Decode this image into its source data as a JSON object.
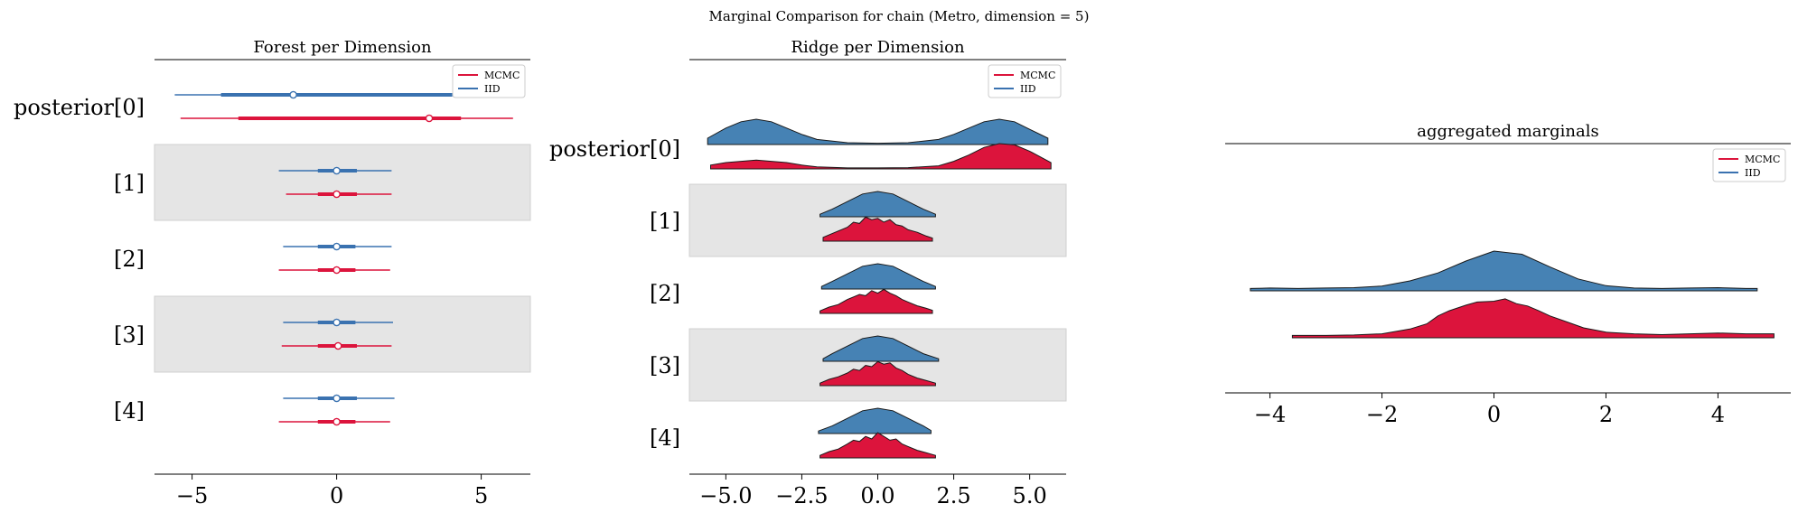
{
  "suptitle": "Marginal Comparison for chain (Metro, dimension = 5)",
  "colors": {
    "mcmc": "#dc143c",
    "iid": "#3a72b0",
    "ridge_iid": "#4682b4",
    "band": "#e5e5e5"
  },
  "chart_data": [
    {
      "type": "forest",
      "title": "Forest per Dimension",
      "row_labels": [
        "posterior[0]",
        "[1]",
        "[2]",
        "[3]",
        "[4]"
      ],
      "shaded_rows": [
        1,
        3
      ],
      "xlim": [
        -6.3,
        6.7
      ],
      "xticks": [
        -5,
        0,
        5
      ],
      "xtick_labels": [
        "−5",
        "0",
        "5"
      ],
      "legend": {
        "position": "top-right",
        "entries": [
          "MCMC",
          "IID"
        ]
      },
      "series": [
        {
          "name": "IID",
          "color_key": "iid",
          "rows": [
            {
              "lo": -5.6,
              "q25": -4.0,
              "mid": -1.5,
              "q75": 4.0,
              "hi": 5.6
            },
            {
              "lo": -2.0,
              "q25": -0.65,
              "mid": 0.0,
              "q75": 0.7,
              "hi": 1.9
            },
            {
              "lo": -1.85,
              "q25": -0.65,
              "mid": 0.0,
              "q75": 0.65,
              "hi": 1.9
            },
            {
              "lo": -1.85,
              "q25": -0.65,
              "mid": 0.0,
              "q75": 0.65,
              "hi": 1.95
            },
            {
              "lo": -1.85,
              "q25": -0.65,
              "mid": 0.0,
              "q75": 0.7,
              "hi": 2.0
            }
          ]
        },
        {
          "name": "MCMC",
          "color_key": "mcmc",
          "rows": [
            {
              "lo": -5.4,
              "q25": -3.4,
              "mid": 3.2,
              "q75": 4.3,
              "hi": 6.1
            },
            {
              "lo": -1.75,
              "q25": -0.65,
              "mid": 0.0,
              "q75": 0.7,
              "hi": 1.9
            },
            {
              "lo": -2.0,
              "q25": -0.65,
              "mid": 0.0,
              "q75": 0.65,
              "hi": 1.85
            },
            {
              "lo": -1.9,
              "q25": -0.65,
              "mid": 0.05,
              "q75": 0.7,
              "hi": 1.9
            },
            {
              "lo": -2.0,
              "q25": -0.65,
              "mid": 0.0,
              "q75": 0.65,
              "hi": 1.85
            }
          ]
        }
      ]
    },
    {
      "type": "ridge",
      "title": "Ridge per Dimension",
      "row_labels": [
        "posterior[0]",
        "[1]",
        "[2]",
        "[3]",
        "[4]"
      ],
      "shaded_rows": [
        1,
        3
      ],
      "xlim": [
        -6.2,
        6.2
      ],
      "xticks": [
        -5.0,
        -2.5,
        0.0,
        2.5,
        5.0
      ],
      "xtick_labels": [
        "−5.0",
        "−2.5",
        "0.0",
        "2.5",
        "5.0"
      ],
      "legend": {
        "position": "top-right",
        "entries": [
          "MCMC",
          "IID"
        ]
      },
      "series": [
        {
          "name": "IID",
          "color_key": "ridge_iid",
          "rows": [
            {
              "x": [
                -5.6,
                -5.0,
                -4.5,
                -4.0,
                -3.5,
                -3.0,
                -2.5,
                -2.0,
                -1.0,
                0.0,
                1.0,
                2.0,
                2.5,
                3.0,
                3.5,
                4.0,
                4.5,
                5.0,
                5.6
              ],
              "y": [
                0.25,
                0.65,
                0.9,
                1.0,
                0.9,
                0.65,
                0.4,
                0.2,
                0.07,
                0.05,
                0.07,
                0.2,
                0.4,
                0.65,
                0.9,
                1.0,
                0.9,
                0.6,
                0.25
              ]
            },
            {
              "x": [
                -1.9,
                -1.5,
                -1.0,
                -0.5,
                0.0,
                0.5,
                1.0,
                1.5,
                1.9
              ],
              "y": [
                0.1,
                0.3,
                0.6,
                0.9,
                1.0,
                0.9,
                0.6,
                0.3,
                0.1
              ]
            },
            {
              "x": [
                -1.85,
                -1.5,
                -1.0,
                -0.5,
                0.0,
                0.5,
                1.0,
                1.5,
                1.9
              ],
              "y": [
                0.1,
                0.3,
                0.6,
                0.9,
                1.0,
                0.9,
                0.6,
                0.3,
                0.1
              ]
            },
            {
              "x": [
                -1.8,
                -1.5,
                -1.0,
                -0.5,
                0.0,
                0.5,
                1.0,
                1.5,
                2.0
              ],
              "y": [
                0.1,
                0.3,
                0.6,
                0.9,
                1.0,
                0.9,
                0.6,
                0.3,
                0.1
              ]
            },
            {
              "x": [
                -1.95,
                -1.5,
                -1.0,
                -0.5,
                0.0,
                0.5,
                1.0,
                1.5,
                1.75
              ],
              "y": [
                0.1,
                0.3,
                0.6,
                0.9,
                1.0,
                0.9,
                0.6,
                0.3,
                0.12
              ]
            }
          ]
        },
        {
          "name": "MCMC",
          "color_key": "mcmc",
          "rows": [
            {
              "x": [
                -5.5,
                -5.0,
                -4.5,
                -4.0,
                -3.5,
                -3.0,
                -2.5,
                -2.0,
                -1.0,
                0.0,
                1.0,
                2.0,
                2.5,
                3.0,
                3.5,
                4.0,
                4.5,
                5.0,
                5.7
              ],
              "y": [
                0.15,
                0.25,
                0.3,
                0.35,
                0.3,
                0.25,
                0.15,
                0.08,
                0.04,
                0.04,
                0.05,
                0.12,
                0.3,
                0.55,
                0.85,
                1.0,
                0.95,
                0.7,
                0.25
              ]
            },
            {
              "x": [
                -1.8,
                -1.5,
                -1.2,
                -1.0,
                -0.8,
                -0.6,
                -0.4,
                -0.2,
                0.0,
                0.2,
                0.4,
                0.6,
                0.8,
                1.0,
                1.3,
                1.6,
                1.8
              ],
              "y": [
                0.15,
                0.3,
                0.45,
                0.55,
                0.75,
                0.7,
                0.95,
                0.85,
                0.9,
                0.75,
                0.85,
                0.65,
                0.6,
                0.45,
                0.35,
                0.2,
                0.12
              ]
            },
            {
              "x": [
                -1.9,
                -1.6,
                -1.3,
                -1.0,
                -0.8,
                -0.6,
                -0.4,
                -0.2,
                0.0,
                0.2,
                0.4,
                0.6,
                0.8,
                1.0,
                1.3,
                1.6,
                1.8
              ],
              "y": [
                0.1,
                0.25,
                0.35,
                0.55,
                0.65,
                0.75,
                0.7,
                0.9,
                0.8,
                0.95,
                0.8,
                0.7,
                0.55,
                0.45,
                0.3,
                0.2,
                0.12
              ]
            },
            {
              "x": [
                -1.9,
                -1.6,
                -1.3,
                -1.0,
                -0.8,
                -0.6,
                -0.4,
                -0.2,
                0.0,
                0.2,
                0.4,
                0.6,
                0.8,
                1.0,
                1.3,
                1.6,
                1.9
              ],
              "y": [
                0.1,
                0.25,
                0.35,
                0.5,
                0.65,
                0.6,
                0.8,
                0.75,
                0.95,
                0.85,
                0.9,
                0.7,
                0.6,
                0.45,
                0.3,
                0.2,
                0.1
              ]
            },
            {
              "x": [
                -1.9,
                -1.6,
                -1.3,
                -1.0,
                -0.8,
                -0.6,
                -0.4,
                -0.2,
                0.0,
                0.2,
                0.4,
                0.6,
                0.8,
                1.0,
                1.3,
                1.6,
                1.9
              ],
              "y": [
                0.1,
                0.25,
                0.35,
                0.55,
                0.7,
                0.65,
                0.85,
                0.75,
                1.0,
                0.85,
                0.7,
                0.75,
                0.55,
                0.45,
                0.3,
                0.2,
                0.1
              ]
            }
          ]
        }
      ]
    },
    {
      "type": "area",
      "title": "aggregated marginals",
      "xlim": [
        -4.8,
        5.3
      ],
      "xticks": [
        -4,
        -2,
        0,
        2,
        4
      ],
      "xtick_labels": [
        "−4",
        "−2",
        "0",
        "2",
        "4"
      ],
      "legend": {
        "position": "top-right",
        "entries": [
          "MCMC",
          "IID"
        ]
      },
      "series": [
        {
          "name": "IID",
          "color_key": "ridge_iid",
          "x": [
            -4.35,
            -4.0,
            -3.5,
            -3.0,
            -2.5,
            -2.0,
            -1.5,
            -1.0,
            -0.5,
            0.0,
            0.5,
            1.0,
            1.5,
            2.0,
            2.5,
            3.0,
            3.5,
            4.0,
            4.5,
            4.7
          ],
          "y": [
            0.06,
            0.07,
            0.06,
            0.07,
            0.08,
            0.12,
            0.25,
            0.45,
            0.75,
            1.0,
            0.92,
            0.6,
            0.3,
            0.13,
            0.07,
            0.06,
            0.07,
            0.08,
            0.06,
            0.06
          ]
        },
        {
          "name": "MCMC",
          "color_key": "mcmc",
          "x": [
            -3.6,
            -3.0,
            -2.5,
            -2.0,
            -1.5,
            -1.2,
            -1.0,
            -0.8,
            -0.5,
            -0.3,
            0.0,
            0.2,
            0.4,
            0.6,
            0.8,
            1.0,
            1.3,
            1.6,
            2.0,
            2.5,
            3.0,
            3.5,
            4.0,
            4.5,
            5.0
          ],
          "y": [
            0.06,
            0.06,
            0.07,
            0.1,
            0.22,
            0.35,
            0.55,
            0.68,
            0.82,
            0.9,
            0.92,
            0.98,
            0.86,
            0.8,
            0.68,
            0.55,
            0.4,
            0.25,
            0.14,
            0.1,
            0.08,
            0.1,
            0.12,
            0.1,
            0.1
          ]
        }
      ]
    }
  ]
}
